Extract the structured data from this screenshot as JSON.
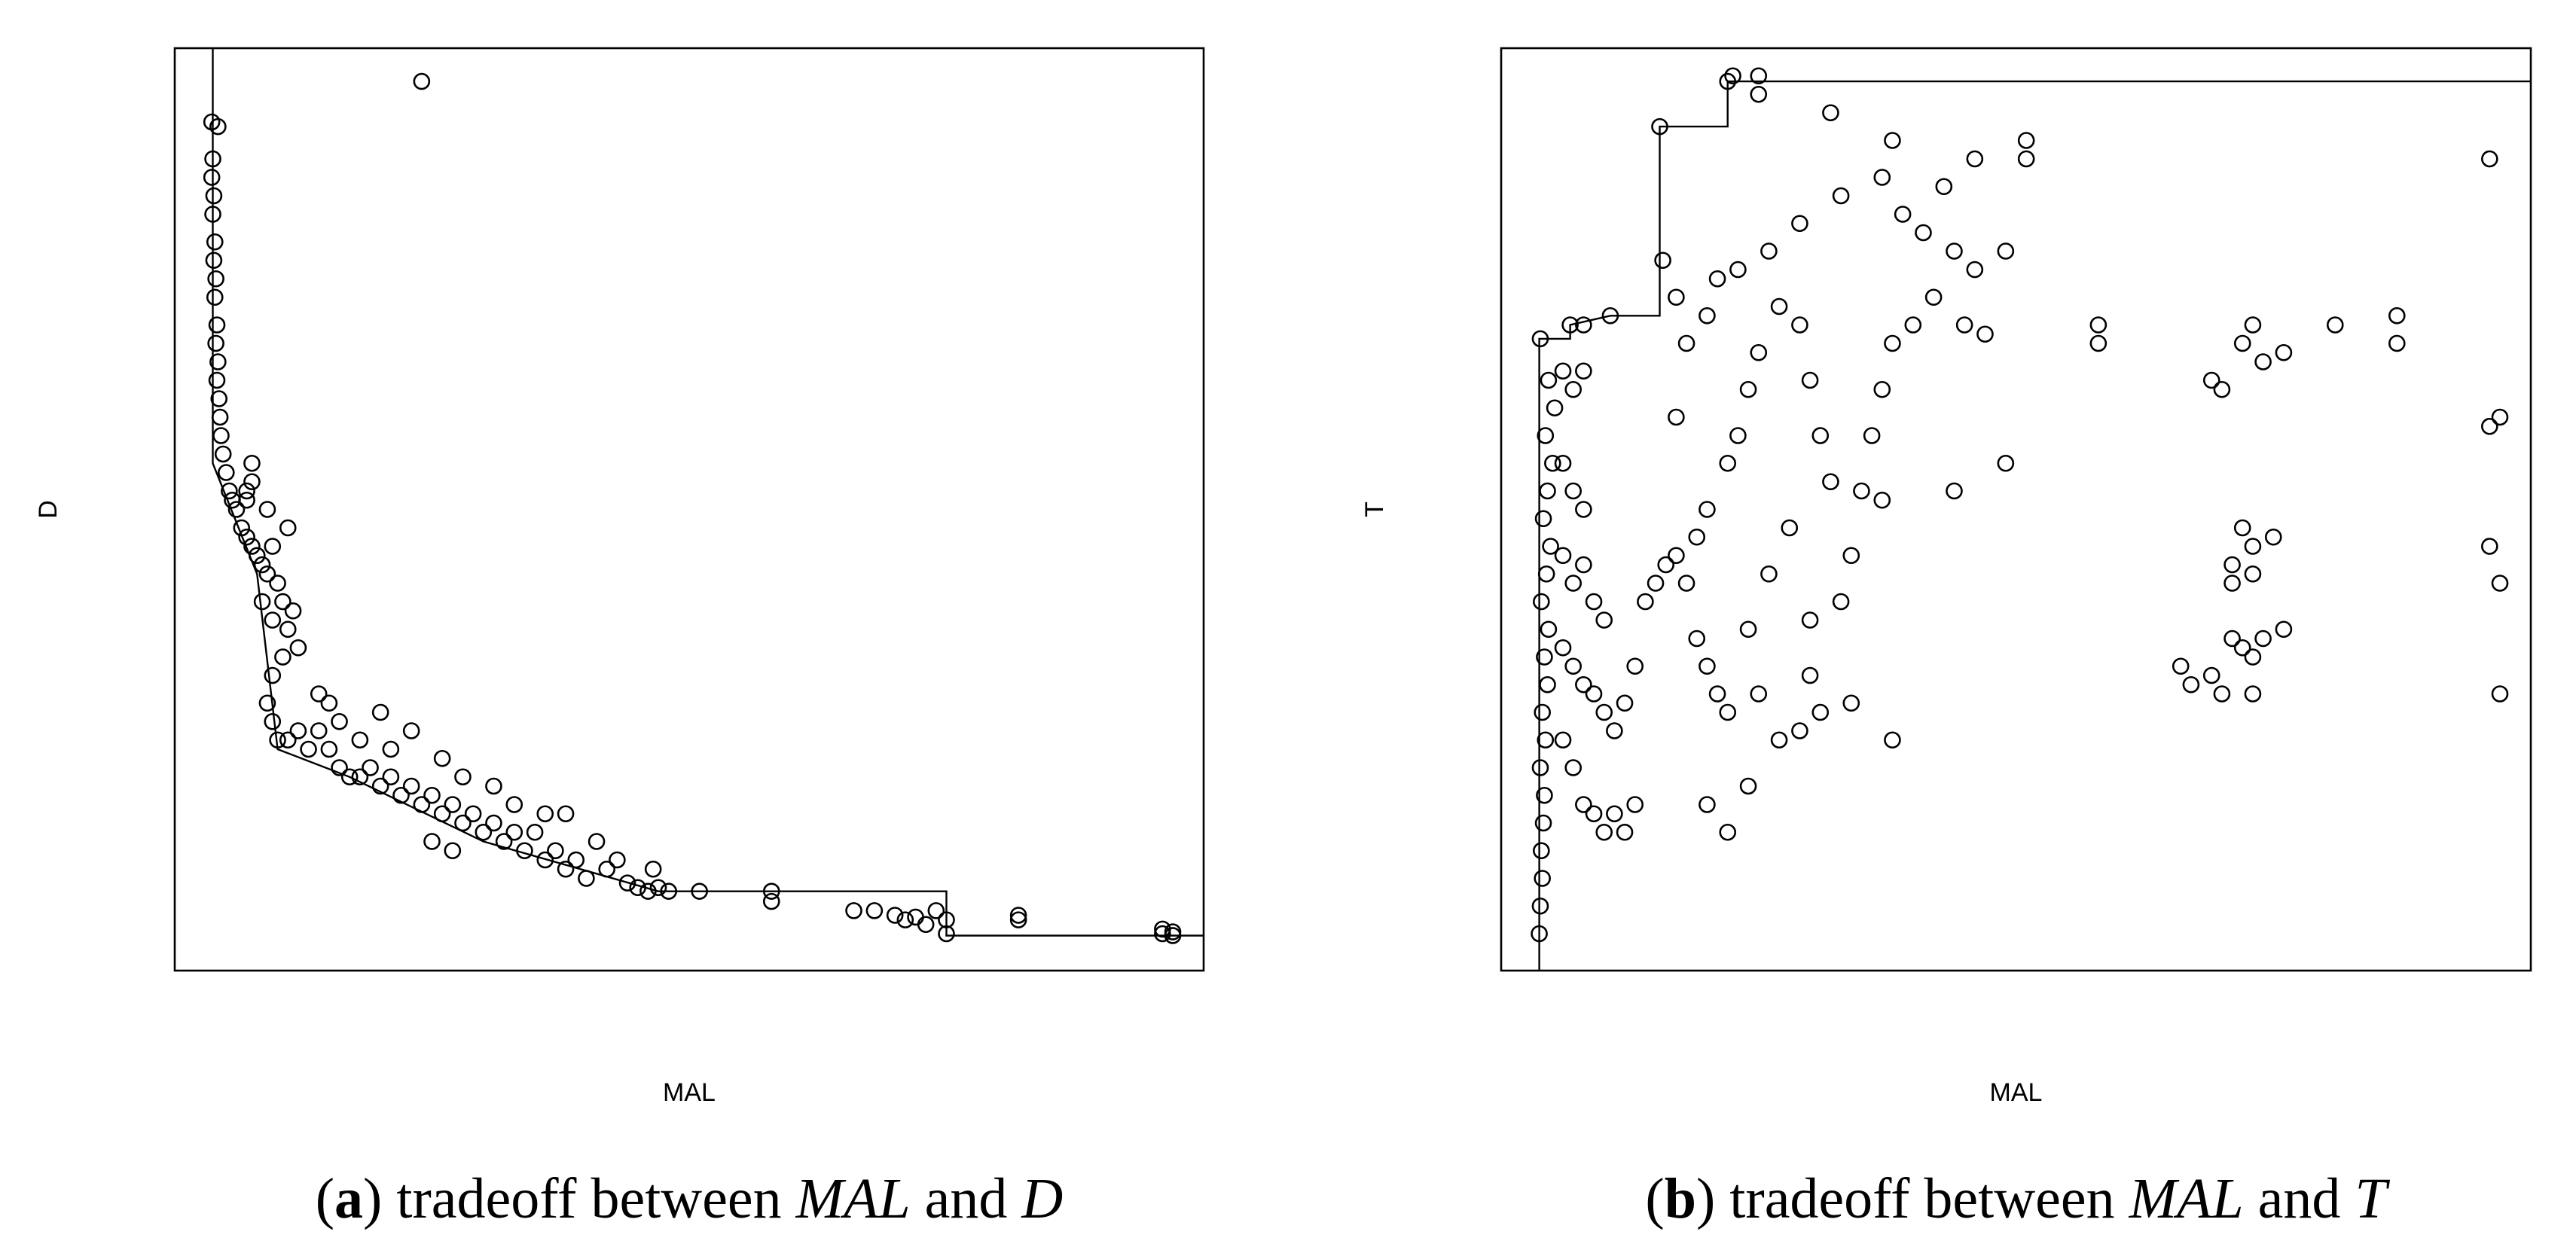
{
  "chart_data": [
    {
      "type": "scatter",
      "xlabel": "MAL",
      "ylabel": "D",
      "xlim": [
        0,
        100
      ],
      "ylim": [
        0,
        100
      ],
      "caption": [
        {
          "text": "(",
          "style": "normal"
        },
        {
          "text": "a",
          "style": "bold"
        },
        {
          "text": ") tradeoff between",
          "style": "normal"
        },
        {
          "text": "MAL",
          "style": "italic"
        },
        {
          "text": "and",
          "style": "normal"
        },
        {
          "text": "D",
          "style": "italic"
        }
      ],
      "frontier": {
        "x": [
          3.7,
          3.7,
          8,
          10,
          17,
          30,
          47,
          75,
          75,
          100
        ],
        "values": [
          100,
          55,
          43,
          24,
          21,
          14,
          8.6,
          8.6,
          3.8,
          3.8
        ]
      },
      "x": [
        3.6,
        3.7,
        3.6,
        3.8,
        3.7,
        3.9,
        3.8,
        4.0,
        3.9,
        4.1,
        4.0,
        4.2,
        4.1,
        4.3,
        4.4,
        4.5,
        4.7,
        5.0,
        5.3,
        5.6,
        6.0,
        6.5,
        7.0,
        7.5,
        8.0,
        8.5,
        9.0,
        7,
        7.5,
        9.5,
        8.5,
        9.5,
        10,
        10.5,
        11,
        11.5,
        12,
        10.5,
        9.5,
        9,
        9.5,
        10,
        11,
        12,
        13,
        14,
        15,
        16,
        17,
        18,
        19,
        20,
        21,
        22,
        23,
        24,
        25,
        26,
        27,
        28,
        29,
        30,
        31,
        32,
        33,
        34,
        35,
        36,
        37,
        38,
        39,
        40,
        41,
        42,
        43,
        44,
        45,
        46,
        46.5,
        47,
        48,
        51,
        58,
        58,
        66,
        68,
        70,
        71,
        72,
        73,
        74,
        75,
        75,
        82,
        82,
        96,
        96,
        97,
        97,
        14,
        15,
        16,
        18,
        21,
        23,
        26,
        28,
        31,
        33,
        36,
        38,
        20,
        24,
        4.2,
        7,
        7.5,
        9,
        11,
        25,
        27
      ],
      "values": [
        92,
        88,
        86,
        84,
        82,
        79,
        77,
        75,
        73,
        70,
        68,
        66,
        64,
        62,
        60,
        58,
        56,
        54,
        52,
        51,
        50,
        48,
        47,
        46,
        45,
        44,
        43,
        52,
        53,
        46,
        40,
        38,
        42,
        40,
        37,
        39,
        35,
        34,
        32,
        29,
        27,
        25,
        25,
        26,
        24,
        26,
        24,
        22,
        21,
        21,
        22,
        20,
        21,
        19,
        20,
        18,
        19,
        17,
        18,
        16,
        17,
        15,
        16,
        14,
        15,
        13,
        15,
        12,
        13,
        11,
        12,
        10,
        14,
        11,
        12,
        9.5,
        9,
        8.6,
        11,
        9,
        8.6,
        8.6,
        8.6,
        7.5,
        6.5,
        6.5,
        6,
        5.5,
        5.8,
        5,
        6.5,
        4,
        5.5,
        6,
        5.5,
        4.5,
        4,
        4.2,
        3.8,
        30,
        29,
        27,
        25,
        24,
        26,
        23,
        21,
        20,
        18,
        17,
        17,
        28,
        96.4,
        91.5,
        51,
        55,
        50,
        48,
        14,
        13
      ]
    },
    {
      "type": "scatter",
      "xlabel": "MAL",
      "ylabel": "T",
      "xlim": [
        0,
        100
      ],
      "ylim": [
        0,
        100
      ],
      "caption": [
        {
          "text": "(",
          "style": "normal"
        },
        {
          "text": "b",
          "style": "bold"
        },
        {
          "text": ") tradeoff between",
          "style": "normal"
        },
        {
          "text": "MAL",
          "style": "italic"
        },
        {
          "text": "and",
          "style": "normal"
        },
        {
          "text": "T",
          "style": "italic"
        }
      ],
      "frontier": {
        "x": [
          3.7,
          3.7,
          6.7,
          6.7,
          10.6,
          15.4,
          15.4,
          22,
          22,
          100
        ],
        "values": [
          0,
          68.5,
          68.5,
          70,
          71,
          71,
          91.5,
          91.5,
          96.4,
          96.4
        ]
      },
      "x": [
        3.7,
        3.8,
        4.0,
        3.9,
        4.1,
        4.2,
        3.8,
        4.3,
        4.0,
        4.5,
        4.2,
        4.6,
        3.9,
        4.4,
        4.8,
        4.1,
        4.5,
        5,
        4.3,
        5.2,
        4.6,
        3.8,
        6,
        7,
        8,
        6,
        7,
        8,
        6,
        7,
        8,
        9,
        10,
        6,
        7,
        8,
        9,
        10,
        11,
        12,
        13,
        6,
        7,
        8,
        9,
        10,
        11,
        12,
        13,
        14,
        15,
        16,
        17,
        18,
        19,
        20,
        21,
        22,
        19,
        20,
        22,
        23,
        24,
        25,
        18,
        17,
        21,
        23,
        26,
        27,
        29,
        30,
        31,
        32,
        28,
        26,
        24,
        25,
        27,
        29,
        30,
        33,
        34,
        35,
        36,
        37,
        38,
        40,
        42,
        44,
        46,
        49,
        45,
        47,
        39,
        41,
        43,
        46,
        51,
        51,
        37,
        38,
        32,
        25,
        29,
        33,
        49,
        44,
        37,
        34,
        31,
        22,
        20,
        24,
        38,
        30,
        73,
        72,
        74,
        70,
        69,
        76,
        81,
        87,
        87,
        58,
        58,
        72,
        73,
        71,
        71,
        75,
        73,
        72,
        73,
        71,
        69,
        70,
        73,
        74,
        76,
        66,
        67,
        96,
        96,
        97,
        96,
        97,
        97,
        15.4,
        22,
        22.5,
        25,
        10.6,
        6.7,
        8,
        15.7,
        17,
        20
      ],
      "values": [
        4,
        7,
        10,
        13,
        16,
        19,
        22,
        25,
        28,
        31,
        34,
        37,
        40,
        43,
        46,
        49,
        52,
        55,
        58,
        61,
        64,
        68.5,
        65,
        63,
        65,
        55,
        52,
        50,
        45,
        42,
        44,
        40,
        38,
        35,
        33,
        31,
        30,
        28,
        26,
        29,
        33,
        25,
        22,
        18,
        17,
        15,
        17,
        15,
        18,
        40,
        42,
        44,
        45,
        42,
        36,
        33,
        30,
        28,
        47,
        50,
        55,
        58,
        63,
        67,
        68,
        60,
        75,
        76,
        78,
        72,
        70,
        64,
        58,
        53,
        48,
        43,
        37,
        30,
        25,
        26,
        38,
        40,
        45,
        52,
        58,
        63,
        68,
        70,
        73,
        78,
        76,
        78,
        70,
        69,
        82,
        80,
        85,
        88,
        90,
        88,
        86,
        90,
        93,
        95,
        81,
        84,
        55,
        52,
        51,
        29,
        28,
        15,
        18,
        20,
        25,
        32,
        70,
        68,
        66,
        63,
        64,
        67,
        70,
        71,
        68,
        70,
        68,
        48,
        46,
        44,
        42,
        47,
        43,
        35,
        34,
        36,
        32,
        30,
        30,
        36,
        37,
        33,
        31,
        88,
        59,
        60,
        46,
        42,
        30,
        91.5,
        96.4,
        97,
        97,
        71,
        70,
        70,
        77,
        73,
        71
      ]
    }
  ]
}
